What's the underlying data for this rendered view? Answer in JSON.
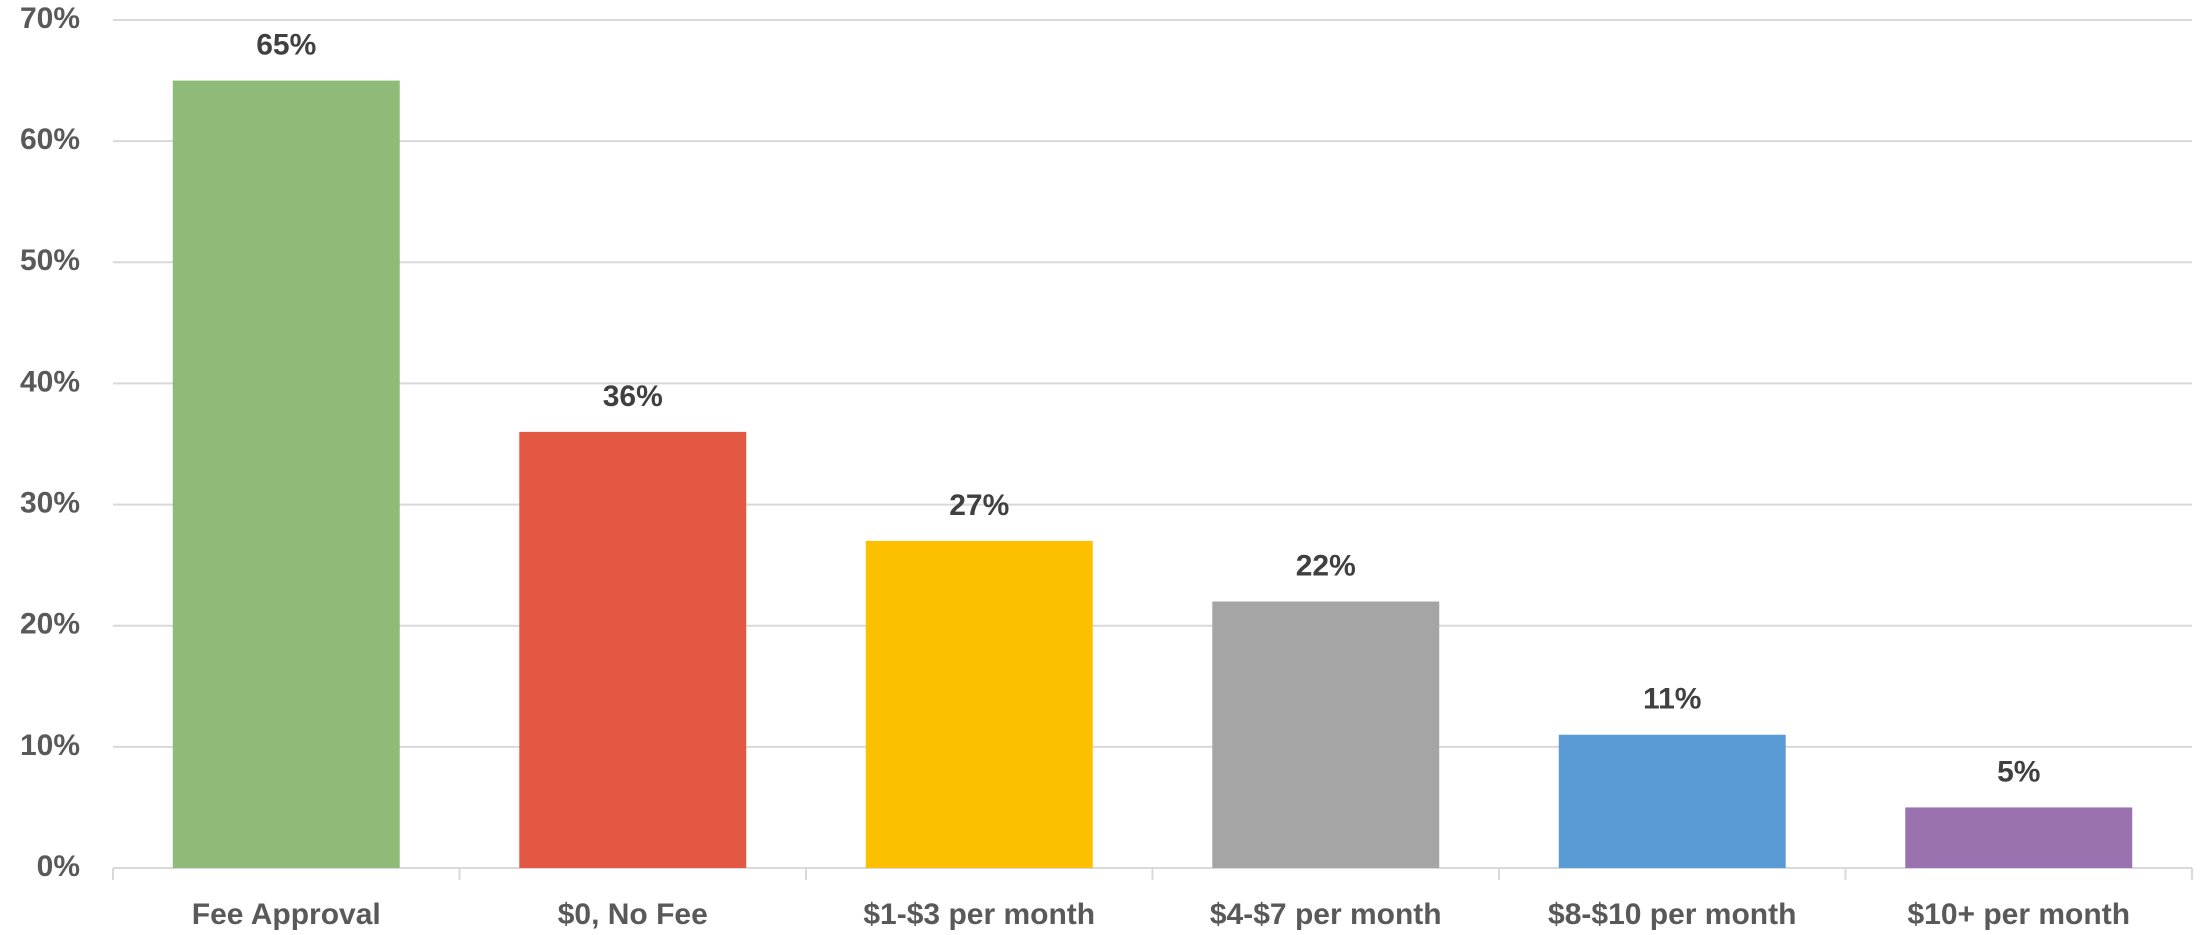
{
  "chart_data": {
    "type": "bar",
    "categories": [
      "Fee Approval",
      "$0, No Fee",
      "$1-$3 per month",
      "$4-$7 per month",
      "$8-$10 per month",
      "$10+ per month"
    ],
    "values": [
      65,
      36,
      27,
      22,
      11,
      5
    ],
    "value_labels": [
      "65%",
      "36%",
      "27%",
      "22%",
      "11%",
      "5%"
    ],
    "colors": [
      "#8fbb78",
      "#e35843",
      "#fdc000",
      "#a5a5a5",
      "#5b9bd5",
      "#9b72b0"
    ],
    "ylim": [
      0,
      70
    ],
    "yticks": [
      {
        "value": 0,
        "label": "0%"
      },
      {
        "value": 10,
        "label": "10%"
      },
      {
        "value": 20,
        "label": "20%"
      },
      {
        "value": 30,
        "label": "30%"
      },
      {
        "value": 40,
        "label": "40%"
      },
      {
        "value": 50,
        "label": "50%"
      },
      {
        "value": 60,
        "label": "60%"
      },
      {
        "value": 70,
        "label": "70%"
      }
    ],
    "grid": true
  }
}
